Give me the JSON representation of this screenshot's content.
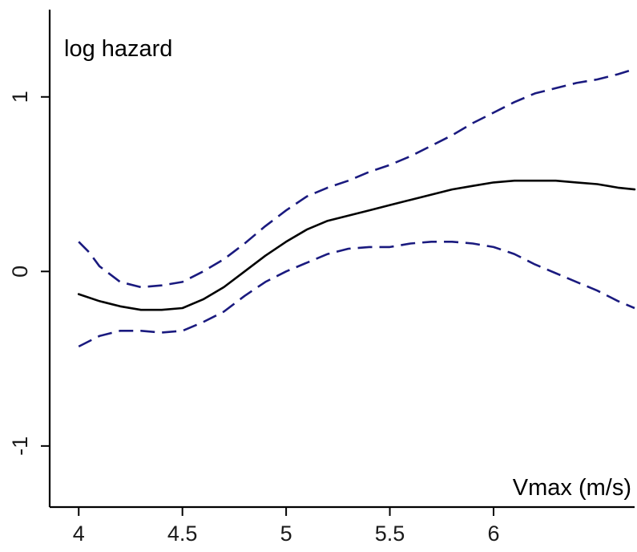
{
  "chart_data": {
    "type": "line",
    "title": "",
    "ylabel": "log hazard",
    "xlabel": "Vmax (m/s)",
    "xlim": [
      3.86,
      6.68
    ],
    "ylim": [
      -1.35,
      1.5
    ],
    "x_ticks": [
      {
        "value": 4,
        "label": "4"
      },
      {
        "value": 4.5,
        "label": "4.5"
      },
      {
        "value": 5,
        "label": "5"
      },
      {
        "value": 5.5,
        "label": "5.5"
      },
      {
        "value": 6,
        "label": "6"
      }
    ],
    "y_ticks": [
      {
        "value": -1,
        "label": "-1"
      },
      {
        "value": 0,
        "label": "0"
      },
      {
        "value": 1,
        "label": "1"
      }
    ],
    "grid": false,
    "legend": "none",
    "colors": {
      "estimate": "#000000",
      "confidence_band": "#1a1a7f",
      "axis": "#000000"
    },
    "series": [
      {
        "style": "solid",
        "x": [
          4.0,
          4.1,
          4.2,
          4.3,
          4.4,
          4.5,
          4.6,
          4.7,
          4.8,
          4.9,
          5.0,
          5.1,
          5.2,
          5.3,
          5.4,
          5.5,
          5.6,
          5.7,
          5.8,
          5.9,
          6.0,
          6.1,
          6.2,
          6.3,
          6.4,
          6.5,
          6.6,
          6.68
        ],
        "y": [
          -0.13,
          -0.17,
          -0.2,
          -0.22,
          -0.22,
          -0.21,
          -0.16,
          -0.09,
          0.0,
          0.09,
          0.17,
          0.24,
          0.29,
          0.32,
          0.35,
          0.38,
          0.41,
          0.44,
          0.47,
          0.49,
          0.51,
          0.52,
          0.52,
          0.52,
          0.51,
          0.5,
          0.48,
          0.47
        ]
      },
      {
        "style": "dashed",
        "x": [
          4.0,
          4.05,
          4.1,
          4.2,
          4.3,
          4.4,
          4.5,
          4.6,
          4.7,
          4.8,
          4.9,
          5.0,
          5.1,
          5.2,
          5.3,
          5.4,
          5.5,
          5.6,
          5.7,
          5.8,
          5.9,
          6.0,
          6.1,
          6.2,
          6.3,
          6.4,
          6.5,
          6.6,
          6.68
        ],
        "y": [
          0.17,
          0.11,
          0.03,
          -0.06,
          -0.09,
          -0.08,
          -0.06,
          0.0,
          0.07,
          0.16,
          0.26,
          0.35,
          0.43,
          0.48,
          0.52,
          0.57,
          0.61,
          0.66,
          0.72,
          0.78,
          0.85,
          0.91,
          0.97,
          1.02,
          1.05,
          1.08,
          1.1,
          1.13,
          1.16
        ]
      },
      {
        "style": "dashed",
        "x": [
          4.0,
          4.1,
          4.2,
          4.3,
          4.4,
          4.5,
          4.6,
          4.7,
          4.8,
          4.9,
          5.0,
          5.1,
          5.2,
          5.3,
          5.4,
          5.5,
          5.6,
          5.7,
          5.8,
          5.9,
          6.0,
          6.1,
          6.2,
          6.3,
          6.4,
          6.5,
          6.6,
          6.68
        ],
        "y": [
          -0.43,
          -0.37,
          -0.34,
          -0.34,
          -0.35,
          -0.34,
          -0.29,
          -0.23,
          -0.14,
          -0.06,
          0.0,
          0.05,
          0.1,
          0.13,
          0.14,
          0.14,
          0.16,
          0.17,
          0.17,
          0.16,
          0.14,
          0.1,
          0.04,
          -0.01,
          -0.06,
          -0.11,
          -0.17,
          -0.21
        ]
      }
    ]
  }
}
